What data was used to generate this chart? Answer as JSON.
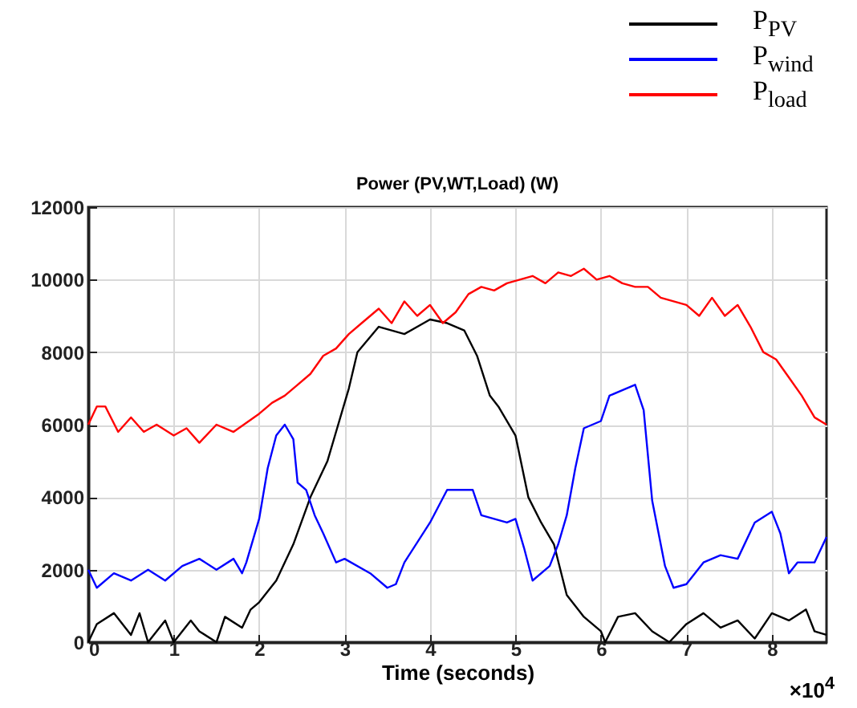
{
  "chart_data": {
    "type": "line",
    "title": "Power (PV,WT,Load) (W)",
    "xlabel": "Time (seconds)",
    "annotations": [
      "×10$^{4}$"
    ],
    "xlim": [
      0,
      8.64
    ],
    "xticks": [
      0,
      1,
      2,
      3,
      4,
      5,
      6,
      7,
      8
    ],
    "ylim": [
      0,
      12000
    ],
    "yticks": [
      0,
      2000,
      4000,
      6000,
      8000,
      10000,
      12000
    ],
    "grid": true,
    "legend": "top right",
    "marker": "none",
    "line_style": "solid",
    "x": [
      0,
      0.1,
      0.3,
      0.5,
      0.6,
      0.7,
      0.9,
      1.0,
      1.2,
      1.3,
      1.5,
      1.6,
      1.8,
      1.9,
      2.0,
      2.2,
      2.4,
      2.6,
      2.8,
      2.9,
      3.05,
      3.15,
      3.4,
      3.7,
      4.0,
      4.2,
      4.4,
      4.55,
      4.7,
      4.8,
      5.0,
      5.15,
      5.3,
      5.45,
      5.6,
      5.8,
      6.0,
      6.05,
      6.2,
      6.4,
      6.6,
      6.8,
      7.0,
      7.2,
      7.4,
      7.6,
      7.8,
      8.0,
      8.2,
      8.4,
      8.5,
      8.64
    ],
    "series": [
      {
        "name": "P$_{PV}$",
        "color": "#000000",
        "values": [
          0,
          500,
          800,
          200,
          800,
          0,
          600,
          0,
          600,
          300,
          0,
          700,
          400,
          900,
          1100,
          1700,
          2700,
          4000,
          5000,
          5800,
          7000,
          8000,
          8700,
          8500,
          8900,
          8800,
          8600,
          7900,
          6800,
          6500,
          5700,
          4000,
          3300,
          2700,
          1300,
          700,
          300,
          0,
          700,
          800,
          300,
          0,
          500,
          800,
          400,
          600,
          100,
          800,
          600,
          900,
          300,
          200
        ]
      },
      {
        "name": "P$_{wind}$",
        "color": "#0000ff",
        "x": [
          0,
          0.1,
          0.3,
          0.5,
          0.7,
          0.9,
          1.1,
          1.3,
          1.5,
          1.7,
          1.8,
          1.85,
          2.0,
          2.1,
          2.2,
          2.3,
          2.4,
          2.45,
          2.55,
          2.65,
          2.75,
          2.9,
          3.0,
          3.3,
          3.5,
          3.6,
          3.7,
          4.0,
          4.2,
          4.5,
          4.6,
          4.9,
          5.0,
          5.1,
          5.2,
          5.4,
          5.5,
          5.6,
          5.7,
          5.8,
          6.0,
          6.1,
          6.3,
          6.4,
          6.5,
          6.6,
          6.75,
          6.85,
          7.0,
          7.2,
          7.4,
          7.6,
          7.8,
          8.0,
          8.1,
          8.2,
          8.3,
          8.5,
          8.64
        ],
        "values": [
          2000,
          1500,
          1900,
          1700,
          2000,
          1700,
          2100,
          2300,
          2000,
          2300,
          1900,
          2200,
          3400,
          4800,
          5700,
          6000,
          5600,
          4400,
          4200,
          3500,
          3000,
          2200,
          2300,
          1900,
          1500,
          1600,
          2200,
          3300,
          4200,
          4200,
          3500,
          3300,
          3400,
          2600,
          1700,
          2100,
          2700,
          3500,
          4800,
          5900,
          6100,
          6800,
          7000,
          7100,
          6400,
          3900,
          2100,
          1500,
          1600,
          2200,
          2400,
          2300,
          3300,
          3600,
          3000,
          1900,
          2200,
          2200,
          2900
        ]
      },
      {
        "name": "P$_{load}$",
        "color": "#ff0000",
        "x": [
          0,
          0.1,
          0.2,
          0.35,
          0.5,
          0.65,
          0.8,
          1.0,
          1.15,
          1.3,
          1.5,
          1.7,
          2.0,
          2.15,
          2.3,
          2.45,
          2.6,
          2.75,
          2.9,
          3.05,
          3.2,
          3.4,
          3.55,
          3.7,
          3.85,
          4.0,
          4.15,
          4.3,
          4.45,
          4.6,
          4.75,
          4.9,
          5.05,
          5.2,
          5.35,
          5.5,
          5.65,
          5.8,
          5.95,
          6.1,
          6.25,
          6.4,
          6.55,
          6.7,
          6.85,
          7.0,
          7.15,
          7.3,
          7.45,
          7.6,
          7.75,
          7.9,
          8.05,
          8.2,
          8.35,
          8.5,
          8.64
        ],
        "values": [
          6000,
          6500,
          6500,
          5800,
          6200,
          5800,
          6000,
          5700,
          5900,
          5500,
          6000,
          5800,
          6300,
          6600,
          6800,
          7100,
          7400,
          7900,
          8100,
          8500,
          8800,
          9200,
          8800,
          9400,
          9000,
          9300,
          8800,
          9100,
          9600,
          9800,
          9700,
          9900,
          10000,
          10100,
          9900,
          10200,
          10100,
          10300,
          10000,
          10100,
          9900,
          9800,
          9800,
          9500,
          9400,
          9300,
          9000,
          9500,
          9000,
          9300,
          8700,
          8000,
          7800,
          7300,
          6800,
          6200,
          6000
        ]
      }
    ]
  }
}
